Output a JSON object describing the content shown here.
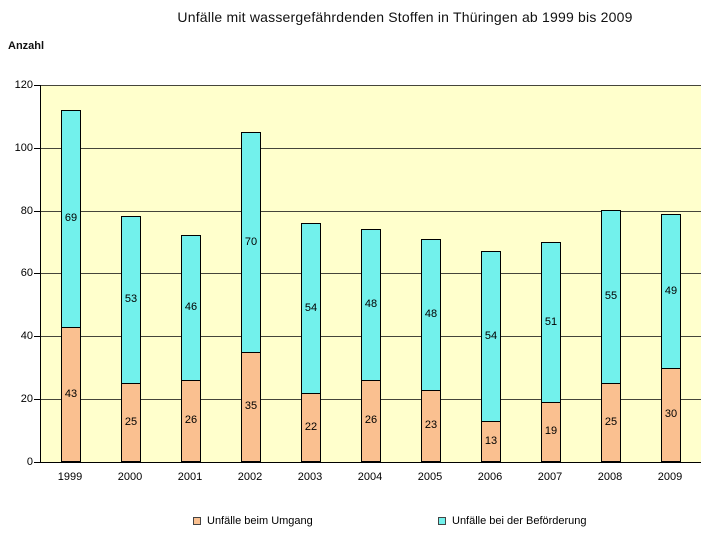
{
  "title": "Unfälle mit wassergefährdenden Stoffen in Thüringen ab 1999 bis 2009",
  "y_axis_label": "Anzahl",
  "chart_data": {
    "type": "bar",
    "stacked": true,
    "title": "Unfälle mit wassergefährdenden Stoffen in Thüringen ab 1999 bis 2009",
    "ylabel": "Anzahl",
    "xlabel": "",
    "ylim": [
      0,
      120
    ],
    "ytick_step": 20,
    "grid": true,
    "data_labels": true,
    "legend_position": "bottom",
    "plot_background": "#FFFFCC",
    "gridline_color": "#45453A",
    "bar_border_color": "#000000",
    "categories": [
      "1999",
      "2000",
      "2001",
      "2002",
      "2003",
      "2004",
      "2005",
      "2006",
      "2007",
      "2008",
      "2009"
    ],
    "series": [
      {
        "name": "Unfälle beim Umgang",
        "color": "#FAC090",
        "values": [
          43,
          25,
          26,
          35,
          22,
          26,
          23,
          13,
          19,
          25,
          30
        ]
      },
      {
        "name": "Unfälle bei der Beförderung",
        "color": "#72F1EC",
        "values": [
          69,
          53,
          46,
          70,
          54,
          48,
          48,
          54,
          51,
          55,
          49
        ]
      }
    ]
  }
}
